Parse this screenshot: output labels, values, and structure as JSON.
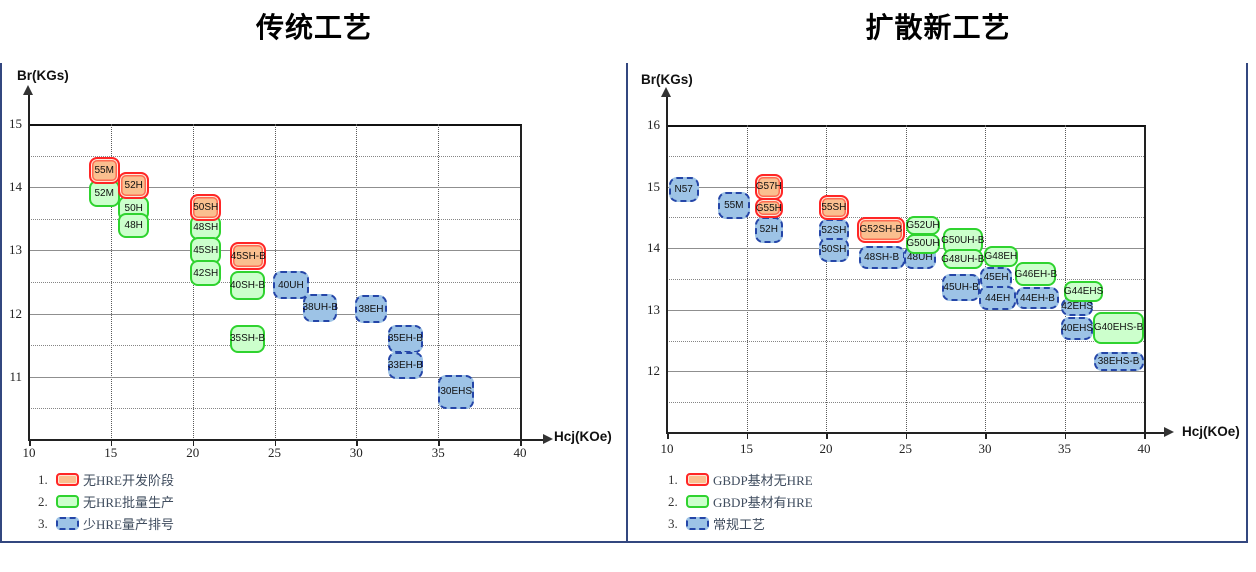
{
  "colors": {
    "dev_fill": "#FABF8F",
    "dev_border": "#FF2626",
    "mass_fill": "#CCFFCC",
    "mass_border": "#2FD32F",
    "conv_fill": "#9DC3E6",
    "conv_border": "#2546A8",
    "panel_border": "#33477F",
    "grid": "#8F8F8F",
    "axis": "#222222"
  },
  "chart_data": [
    {
      "type": "scatter",
      "key": "traditional",
      "title": "传统工艺",
      "xlabel": "Hcj(KOe)",
      "ylabel": "Br(KGs)",
      "xlim": [
        10,
        40
      ],
      "ylim": [
        10,
        15
      ],
      "xticks": [
        10,
        15,
        20,
        25,
        30,
        35,
        40
      ],
      "yticks": [
        15,
        14,
        13,
        12,
        11
      ],
      "grid": "on",
      "legend_position": "bottom-left",
      "legend": [
        {
          "no": "1.",
          "key": "dev",
          "label": "无HRE开发阶段"
        },
        {
          "no": "2.",
          "key": "mass",
          "label": "无HRE批量生产"
        },
        {
          "no": "3.",
          "key": "conv",
          "label": "少HRE量产排号"
        }
      ],
      "points": [
        {
          "label": "52M",
          "type": "mass",
          "x": 14.6,
          "y": 13.9,
          "w": 1.9,
          "h": 0.42
        },
        {
          "label": "50H",
          "type": "mass",
          "x": 16.4,
          "y": 13.66,
          "w": 1.9,
          "h": 0.4
        },
        {
          "label": "48H",
          "type": "mass",
          "x": 16.4,
          "y": 13.4,
          "w": 1.9,
          "h": 0.4
        },
        {
          "label": "48SH",
          "type": "mass",
          "x": 20.8,
          "y": 13.36,
          "w": 1.9,
          "h": 0.4
        },
        {
          "label": "45SH",
          "type": "mass",
          "x": 20.8,
          "y": 13.0,
          "w": 1.9,
          "h": 0.42
        },
        {
          "label": "42SH",
          "type": "mass",
          "x": 20.8,
          "y": 12.64,
          "w": 1.9,
          "h": 0.42
        },
        {
          "label": "40SH-B",
          "type": "mass",
          "x": 23.35,
          "y": 12.45,
          "w": 2.1,
          "h": 0.46
        },
        {
          "label": "35SH-B",
          "type": "mass",
          "x": 23.35,
          "y": 11.6,
          "w": 2.1,
          "h": 0.45
        },
        {
          "label": "40UH",
          "type": "conv",
          "x": 26.0,
          "y": 12.45,
          "w": 2.2,
          "h": 0.45
        },
        {
          "label": "38UH-B",
          "type": "conv",
          "x": 27.8,
          "y": 12.09,
          "w": 2.1,
          "h": 0.44
        },
        {
          "label": "38EH",
          "type": "conv",
          "x": 30.9,
          "y": 12.07,
          "w": 2.0,
          "h": 0.44
        },
        {
          "label": "35EH-B",
          "type": "conv",
          "x": 33.0,
          "y": 11.6,
          "w": 2.1,
          "h": 0.44
        },
        {
          "label": "33EH-B",
          "type": "conv",
          "x": 33.0,
          "y": 11.18,
          "w": 2.1,
          "h": 0.42
        },
        {
          "label": "30EHS",
          "type": "conv",
          "x": 36.1,
          "y": 10.76,
          "w": 2.2,
          "h": 0.55
        },
        {
          "label": "55M",
          "type": "dev",
          "x": 14.6,
          "y": 14.27,
          "w": 1.9,
          "h": 0.43
        },
        {
          "label": "52H",
          "type": "dev",
          "x": 16.4,
          "y": 14.03,
          "w": 1.9,
          "h": 0.43
        },
        {
          "label": "50SH",
          "type": "dev",
          "x": 20.8,
          "y": 13.68,
          "w": 1.9,
          "h": 0.43
        },
        {
          "label": "45SH-B",
          "type": "dev",
          "x": 23.4,
          "y": 12.91,
          "w": 2.2,
          "h": 0.45
        }
      ]
    },
    {
      "type": "scatter",
      "key": "diffusion",
      "title": "扩散新工艺",
      "xlabel": "Hcj(KOe)",
      "ylabel": "Br(KGs)",
      "xlim": [
        10,
        40
      ],
      "ylim": [
        11,
        16
      ],
      "xticks": [
        10,
        15,
        20,
        25,
        30,
        35,
        40
      ],
      "yticks": [
        16,
        15,
        14,
        13,
        12
      ],
      "grid": "on",
      "legend_position": "bottom-left",
      "legend": [
        {
          "no": "1.",
          "key": "dev",
          "label": "GBDP基材无HRE"
        },
        {
          "no": "2.",
          "key": "mass",
          "label": "GBDP基材有HRE"
        },
        {
          "no": "3.",
          "key": "conv",
          "label": "常规工艺"
        }
      ],
      "points": [
        {
          "label": "52H",
          "type": "conv",
          "x": 16.4,
          "y": 14.3,
          "w": 1.8,
          "h": 0.42
        },
        {
          "label": "52SH",
          "type": "conv",
          "x": 20.5,
          "y": 14.28,
          "w": 1.85,
          "h": 0.38
        },
        {
          "label": "50SH",
          "type": "conv",
          "x": 20.5,
          "y": 13.97,
          "w": 1.85,
          "h": 0.38
        },
        {
          "label": "48SH-B",
          "type": "conv",
          "x": 23.5,
          "y": 13.85,
          "w": 2.9,
          "h": 0.38
        },
        {
          "label": "48UH",
          "type": "conv",
          "x": 25.9,
          "y": 13.85,
          "w": 2.0,
          "h": 0.38
        },
        {
          "label": "45UH-B",
          "type": "conv",
          "x": 28.5,
          "y": 13.37,
          "w": 2.4,
          "h": 0.44
        },
        {
          "label": "G52UH",
          "type": "mass",
          "x": 26.1,
          "y": 14.37,
          "w": 2.1,
          "h": 0.32
        },
        {
          "label": "G50UH",
          "type": "mass",
          "x": 26.1,
          "y": 14.07,
          "w": 2.1,
          "h": 0.32
        },
        {
          "label": "G50UH-B",
          "type": "mass",
          "x": 28.6,
          "y": 14.12,
          "w": 2.5,
          "h": 0.42
        },
        {
          "label": "G48UH-B",
          "type": "mass",
          "x": 28.6,
          "y": 13.82,
          "w": 2.55,
          "h": 0.32
        },
        {
          "label": "G48EH",
          "type": "mass",
          "x": 31.0,
          "y": 13.87,
          "w": 2.1,
          "h": 0.34
        },
        {
          "label": "45EH",
          "type": "conv",
          "x": 30.7,
          "y": 13.52,
          "w": 2.0,
          "h": 0.36
        },
        {
          "label": "44EH",
          "type": "conv",
          "x": 30.8,
          "y": 13.19,
          "w": 2.3,
          "h": 0.38
        },
        {
          "label": "44EH-B",
          "type": "conv",
          "x": 33.3,
          "y": 13.19,
          "w": 2.7,
          "h": 0.36
        },
        {
          "label": "G46EH-B",
          "type": "mass",
          "x": 33.2,
          "y": 13.58,
          "w": 2.6,
          "h": 0.38
        },
        {
          "label": "42EHS",
          "type": "conv",
          "x": 35.8,
          "y": 13.05,
          "w": 2.0,
          "h": 0.3
        },
        {
          "label": "G44EHS",
          "type": "mass",
          "x": 36.2,
          "y": 13.3,
          "w": 2.5,
          "h": 0.34
        },
        {
          "label": "G40EHS-B",
          "type": "mass",
          "x": 38.4,
          "y": 12.71,
          "w": 3.2,
          "h": 0.52
        },
        {
          "label": "40EHS",
          "type": "conv",
          "x": 35.8,
          "y": 12.7,
          "w": 2.0,
          "h": 0.37
        },
        {
          "label": "38EHS-B",
          "type": "conv",
          "x": 38.4,
          "y": 12.16,
          "w": 3.15,
          "h": 0.32
        },
        {
          "label": "N57",
          "type": "conv",
          "x": 11.05,
          "y": 14.95,
          "w": 1.9,
          "h": 0.4
        },
        {
          "label": "55M",
          "type": "conv",
          "x": 14.2,
          "y": 14.7,
          "w": 2.0,
          "h": 0.44
        },
        {
          "label": "G57H",
          "type": "dev",
          "x": 16.4,
          "y": 15.0,
          "w": 1.8,
          "h": 0.42
        },
        {
          "label": "G55H",
          "type": "dev",
          "x": 16.4,
          "y": 14.65,
          "w": 1.8,
          "h": 0.33
        },
        {
          "label": "55SH",
          "type": "dev",
          "x": 20.5,
          "y": 14.66,
          "w": 1.85,
          "h": 0.4
        },
        {
          "label": "G52SH-B",
          "type": "dev",
          "x": 23.45,
          "y": 14.3,
          "w": 3.0,
          "h": 0.42
        }
      ]
    }
  ]
}
